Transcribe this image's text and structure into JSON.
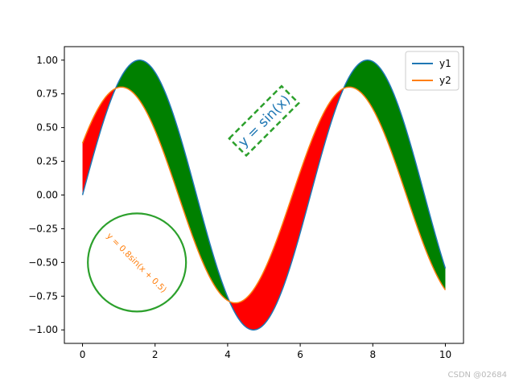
{
  "chart_data": {
    "type": "line",
    "x_range": [
      0,
      10
    ],
    "xlim": [
      -0.5,
      10.5
    ],
    "ylim": [
      -1.1,
      1.1
    ],
    "x_ticks": [
      0,
      2,
      4,
      6,
      8,
      10
    ],
    "x_tick_labels": [
      "0",
      "2",
      "4",
      "6",
      "8",
      "10"
    ],
    "y_ticks": [
      1.0,
      0.75,
      0.5,
      0.25,
      0.0,
      -0.25,
      -0.5,
      -0.75,
      -1.0
    ],
    "y_tick_labels": [
      "1.00",
      "0.75",
      "0.50",
      "0.25",
      "0.00",
      "−0.25",
      "−0.50",
      "−0.75",
      "−1.00"
    ],
    "grid": false,
    "legend_position": "top-right",
    "series": [
      {
        "name": "y1",
        "formula": "sin(x)",
        "color": "#1f77b4"
      },
      {
        "name": "y2",
        "formula": "0.8sin(x + 0.5)",
        "color": "#ff7f0e"
      }
    ],
    "fill_between": {
      "y1_above_color": "#008000",
      "y2_above_color": "#ff0000"
    },
    "annotations": [
      {
        "text": "y = sin(x)",
        "x": 5.0,
        "y": 0.55,
        "rotation": 45,
        "color": "#1f77b4",
        "box_color": "#2ca02c",
        "box_style": "dashed"
      },
      {
        "text": "y = 0.8sin(x + 0.5)",
        "x": 1.5,
        "y": -0.5,
        "rotation": -45,
        "color": "#ff7f0e",
        "circle_color": "#2ca02c"
      }
    ]
  },
  "watermark": "CSDN @02684"
}
